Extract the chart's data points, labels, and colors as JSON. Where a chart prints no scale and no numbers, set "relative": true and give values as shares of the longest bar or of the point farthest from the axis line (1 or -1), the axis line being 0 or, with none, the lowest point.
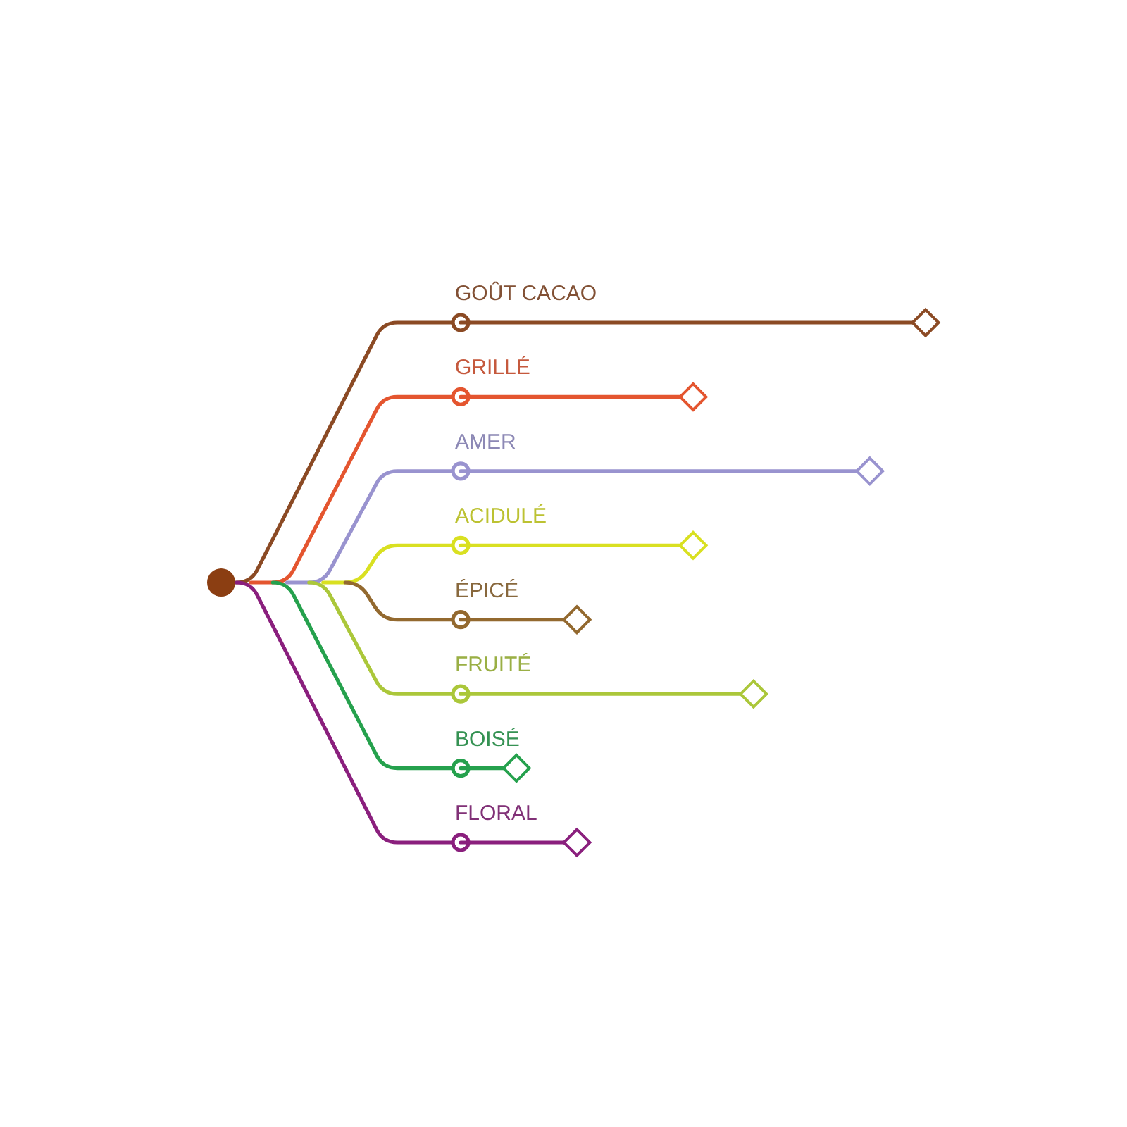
{
  "chart_data": {
    "type": "lollipop",
    "orientation": "horizontal",
    "relative": true,
    "marker": "diamond",
    "categories": [
      "GOÛT CACAO",
      "GRILLÉ",
      "AMER",
      "ACIDULÉ",
      "ÉPICÉ",
      "FRUITÉ",
      "BOISÉ",
      "FLORAL"
    ],
    "values": [
      1,
      0.5,
      0.88,
      0.5,
      0.25,
      0.63,
      0.12,
      0.25
    ],
    "colors": [
      "#8b4a24",
      "#e4552f",
      "#9993cf",
      "#d9e021",
      "#93692f",
      "#abc73a",
      "#25a14d",
      "#8a1f7d"
    ]
  }
}
